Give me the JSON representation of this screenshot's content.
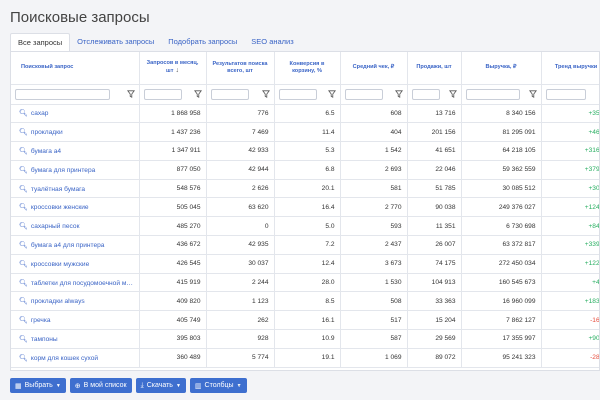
{
  "page": {
    "title": "Поисковые запросы"
  },
  "tabs": [
    {
      "label": "Все запросы",
      "active": true
    },
    {
      "label": "Отслеживать запросы",
      "active": false
    },
    {
      "label": "Подобрать запросы",
      "active": false
    },
    {
      "label": "SEO анализ",
      "active": false
    }
  ],
  "table": {
    "columns": [
      {
        "label": "Поисковый запрос"
      },
      {
        "label": "Запросов в месяц, шт",
        "sort": "↓"
      },
      {
        "label": "Результатов поиска всего, шт"
      },
      {
        "label": "Конверсия в корзину, %"
      },
      {
        "label": "Средний чек, ₽"
      },
      {
        "label": "Продажи, шт"
      },
      {
        "label": "Выручка, ₽"
      },
      {
        "label": "Тренд выручки"
      }
    ],
    "rows": [
      {
        "query": "сахар",
        "requests": "1 868 958",
        "results": "776",
        "conversion": "6.5",
        "avg_check": "608",
        "sales": "13 716",
        "revenue": "8 340 156",
        "trend": "+35%",
        "trend_dir": "pos"
      },
      {
        "query": "прокладки",
        "requests": "1 437 236",
        "results": "7 469",
        "conversion": "11.4",
        "avg_check": "404",
        "sales": "201 156",
        "revenue": "81 295 091",
        "trend": "+46%",
        "trend_dir": "pos"
      },
      {
        "query": "бумага а4",
        "requests": "1 347 911",
        "results": "42 933",
        "conversion": "5.3",
        "avg_check": "1 542",
        "sales": "41 651",
        "revenue": "64 218 105",
        "trend": "+316%",
        "trend_dir": "pos"
      },
      {
        "query": "бумага для принтера",
        "requests": "877 050",
        "results": "42 944",
        "conversion": "6.8",
        "avg_check": "2 693",
        "sales": "22 046",
        "revenue": "59 362 559",
        "trend": "+379%",
        "trend_dir": "pos"
      },
      {
        "query": "туалётная бумага",
        "requests": "548 576",
        "results": "2 626",
        "conversion": "20.1",
        "avg_check": "581",
        "sales": "51 785",
        "revenue": "30 085 512",
        "trend": "+30%",
        "trend_dir": "pos"
      },
      {
        "query": "кроссовки женские",
        "requests": "505 045",
        "results": "63 620",
        "conversion": "16.4",
        "avg_check": "2 770",
        "sales": "90 038",
        "revenue": "249 376 027",
        "trend": "+124%",
        "trend_dir": "pos"
      },
      {
        "query": "сахарный песок",
        "requests": "485 270",
        "results": "0",
        "conversion": "5.0",
        "avg_check": "593",
        "sales": "11 351",
        "revenue": "6 730 698",
        "trend": "+84%",
        "trend_dir": "pos"
      },
      {
        "query": "бумага а4 для принтера",
        "requests": "436 672",
        "results": "42 935",
        "conversion": "7.2",
        "avg_check": "2 437",
        "sales": "26 007",
        "revenue": "63 372 817",
        "trend": "+339%",
        "trend_dir": "pos"
      },
      {
        "query": "кроссовки мужские",
        "requests": "426 545",
        "results": "30 037",
        "conversion": "12.4",
        "avg_check": "3 673",
        "sales": "74 175",
        "revenue": "272 450 034",
        "trend": "+122%",
        "trend_dir": "pos"
      },
      {
        "query": "таблетки для посудомоечной ма...",
        "requests": "415 919",
        "results": "2 244",
        "conversion": "28.0",
        "avg_check": "1 530",
        "sales": "104 913",
        "revenue": "160 545 673",
        "trend": "+4%",
        "trend_dir": "pos"
      },
      {
        "query": "прокладки always",
        "requests": "409 820",
        "results": "1 123",
        "conversion": "8.5",
        "avg_check": "508",
        "sales": "33 363",
        "revenue": "16 960 099",
        "trend": "+183%",
        "trend_dir": "pos"
      },
      {
        "query": "гречка",
        "requests": "405 749",
        "results": "262",
        "conversion": "16.1",
        "avg_check": "517",
        "sales": "15 204",
        "revenue": "7 862 127",
        "trend": "-16%",
        "trend_dir": "neg"
      },
      {
        "query": "тампоны",
        "requests": "395 803",
        "results": "928",
        "conversion": "10.9",
        "avg_check": "587",
        "sales": "29 569",
        "revenue": "17 355 997",
        "trend": "+90%",
        "trend_dir": "pos"
      },
      {
        "query": "корм для кошек сухой",
        "requests": "360 489",
        "results": "5 774",
        "conversion": "19.1",
        "avg_check": "1 069",
        "sales": "89 072",
        "revenue": "95 241 323",
        "trend": "-28%",
        "trend_dir": "neg"
      }
    ]
  },
  "bottom_bar": {
    "select_label": "Выбрать",
    "my_list_label": "В мой список",
    "download_label": "Скачать",
    "columns_label": "Столбцы"
  },
  "colors": {
    "accent": "#3e6fcf",
    "positive": "#27ae60",
    "negative": "#e74c3c"
  }
}
